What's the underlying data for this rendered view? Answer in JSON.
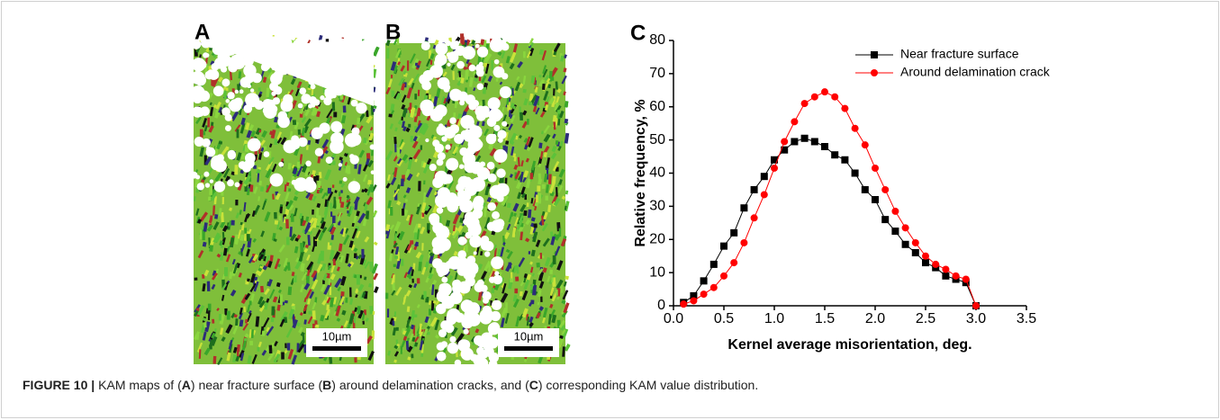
{
  "panels": [
    {
      "label": "A",
      "scale_bar": "10µm"
    },
    {
      "label": "B",
      "scale_bar": "10µm"
    },
    {
      "label": "C"
    }
  ],
  "chart_data": {
    "type": "line",
    "x_label": "Kernel average misorientation, deg.",
    "y_label": "Relative frequency, %",
    "x": [
      0.1,
      0.2,
      0.3,
      0.4,
      0.5,
      0.6,
      0.7,
      0.8,
      0.9,
      1.0,
      1.1,
      1.2,
      1.3,
      1.4,
      1.5,
      1.6,
      1.7,
      1.8,
      1.9,
      2.0,
      2.1,
      2.2,
      2.3,
      2.4,
      2.5,
      2.6,
      2.7,
      2.8,
      2.9,
      3.0
    ],
    "series": [
      {
        "name": "Near fracture surface",
        "color": "#000000",
        "marker": "square",
        "values": [
          1,
          3,
          7.5,
          12.5,
          18,
          22,
          29.5,
          35,
          39,
          44,
          47,
          49.5,
          50.5,
          49.5,
          48,
          45.5,
          44,
          40,
          35,
          32,
          26,
          22.5,
          18.5,
          16,
          13,
          11.5,
          9,
          8,
          7,
          0
        ]
      },
      {
        "name": "Around delamination crack",
        "color": "#ff0000",
        "marker": "circle",
        "values": [
          0.5,
          1.5,
          3.5,
          5.5,
          9,
          13,
          19,
          26.5,
          33.5,
          41.5,
          49.5,
          55.5,
          61,
          63,
          64.5,
          63,
          59.5,
          53.5,
          48.5,
          41.5,
          35,
          28.5,
          23.5,
          19,
          15,
          12.5,
          11,
          9,
          8,
          0
        ]
      }
    ],
    "xlim": [
      0,
      3.5
    ],
    "xticks": [
      {
        "value": 0,
        "label": "0.0"
      },
      0.5,
      {
        "value": 1,
        "label": "1.0"
      },
      1.5,
      {
        "value": 2,
        "label": "2.0"
      },
      2.5,
      {
        "value": 3,
        "label": "3.0"
      },
      3.5
    ],
    "ylim": [
      0,
      80
    ],
    "yticks": [
      0,
      10,
      20,
      30,
      40,
      50,
      60,
      70,
      80
    ],
    "legend": "upper right"
  },
  "caption": {
    "label": "FIGURE 10 |",
    "segments": [
      {
        "text": "KAM maps of ("
      },
      {
        "text": "A",
        "bold": true
      },
      {
        "text": ") near fracture surface ("
      },
      {
        "text": "B",
        "bold": true
      },
      {
        "text": ") around delamination cracks, and ("
      },
      {
        "text": "C",
        "bold": true
      },
      {
        "text": ") corresponding KAM value distribution."
      }
    ]
  }
}
